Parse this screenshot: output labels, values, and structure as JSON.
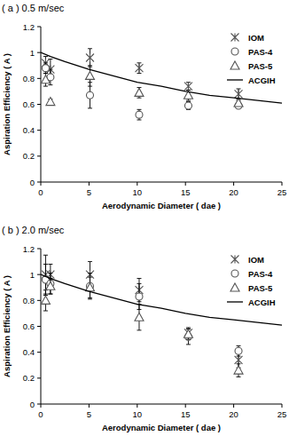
{
  "chart_data": [
    {
      "type": "scatter",
      "title": "( a ) 0.5 m/sec",
      "x_label": "Aerodynamic Diameter ( dae )",
      "y_label": "Aspiration Efficiency ( A )",
      "xlim": [
        0,
        25
      ],
      "xticks": [
        0,
        5,
        10,
        15,
        20,
        25
      ],
      "ylim": [
        0,
        1.2
      ],
      "yticks": [
        0,
        0.2,
        0.4,
        0.6,
        0.8,
        1,
        1.2
      ],
      "legend": "upper right",
      "series": [
        {
          "name": "IOM",
          "color": "#555555",
          "marker": "asterisk",
          "x": [
            0.5,
            1,
            5.1,
            10.2,
            15.3,
            20.5
          ],
          "values": [
            0.92,
            0.87,
            0.96,
            0.88,
            0.74,
            0.68
          ],
          "errors": [
            0.05,
            0.08,
            0.07,
            0.04,
            0.03,
            0.04
          ]
        },
        {
          "name": "PAS-4",
          "color": "#555555",
          "marker": "circle",
          "x": [
            0.5,
            1,
            5.1,
            10.2,
            15.3,
            20.5
          ],
          "values": [
            0.88,
            0.81,
            0.67,
            0.52,
            0.59,
            0.59
          ],
          "errors": [
            0.04,
            0.06,
            0.1,
            0.04,
            0.03,
            0.02
          ]
        },
        {
          "name": "PAS-5",
          "color": "#555555",
          "marker": "triangle",
          "x": [
            0.5,
            1,
            5.1,
            10.2,
            15.3,
            20.5
          ],
          "values": [
            0.79,
            0.62,
            0.82,
            0.69,
            0.67,
            0.61
          ],
          "errors": [
            0.05,
            0.02,
            0.08,
            0.04,
            0.04,
            0.02
          ]
        },
        {
          "name": "ACGIH",
          "color": "#000000",
          "type": "line",
          "line_style": "solid",
          "x": [
            0,
            1,
            2.5,
            5,
            7.5,
            10,
            12.5,
            15,
            17.5,
            20,
            22.5,
            25
          ],
          "values": [
            1.0,
            0.97,
            0.93,
            0.87,
            0.82,
            0.77,
            0.74,
            0.7,
            0.67,
            0.65,
            0.63,
            0.61
          ]
        }
      ]
    },
    {
      "type": "scatter",
      "title": "( b ) 2.0 m/sec",
      "x_label": "Aerodynamic Diameter ( dae )",
      "y_label": "Aspiration Efficiency ( A )",
      "xlim": [
        0,
        25
      ],
      "xticks": [
        0,
        5,
        10,
        15,
        20,
        25
      ],
      "ylim": [
        0,
        1.2
      ],
      "yticks": [
        0,
        0.2,
        0.4,
        0.6,
        0.8,
        1,
        1.2
      ],
      "legend": "upper right",
      "series": [
        {
          "name": "IOM",
          "color": "#555555",
          "marker": "asterisk",
          "x": [
            0.5,
            1,
            5.1,
            10.2,
            15.3,
            20.5
          ],
          "values": [
            1.0,
            1.0,
            1.0,
            0.88,
            0.55,
            0.34
          ],
          "errors": [
            0.15,
            0.08,
            0.1,
            0.09,
            0.04,
            0.06
          ]
        },
        {
          "name": "PAS-4",
          "color": "#555555",
          "marker": "circle",
          "x": [
            0.5,
            1,
            5.1,
            10.2,
            15.3,
            20.5
          ],
          "values": [
            0.96,
            0.93,
            0.91,
            0.83,
            0.52,
            0.41
          ],
          "errors": [
            0.12,
            0.08,
            0.1,
            0.1,
            0.06,
            0.04
          ]
        },
        {
          "name": "PAS-5",
          "color": "#555555",
          "marker": "triangle",
          "x": [
            0.5,
            1,
            5.1,
            10.2,
            15.3,
            20.5
          ],
          "values": [
            0.8,
            0.91,
            0.9,
            0.67,
            0.54,
            0.26
          ],
          "errors": [
            0.08,
            0.06,
            0.08,
            0.1,
            0.04,
            0.05
          ]
        },
        {
          "name": "ACGIH",
          "color": "#000000",
          "type": "line",
          "line_style": "solid",
          "x": [
            0,
            1,
            2.5,
            5,
            7.5,
            10,
            12.5,
            15,
            17.5,
            20,
            22.5,
            25
          ],
          "values": [
            1.0,
            0.97,
            0.93,
            0.87,
            0.82,
            0.77,
            0.74,
            0.7,
            0.67,
            0.65,
            0.63,
            0.61
          ]
        }
      ]
    }
  ]
}
